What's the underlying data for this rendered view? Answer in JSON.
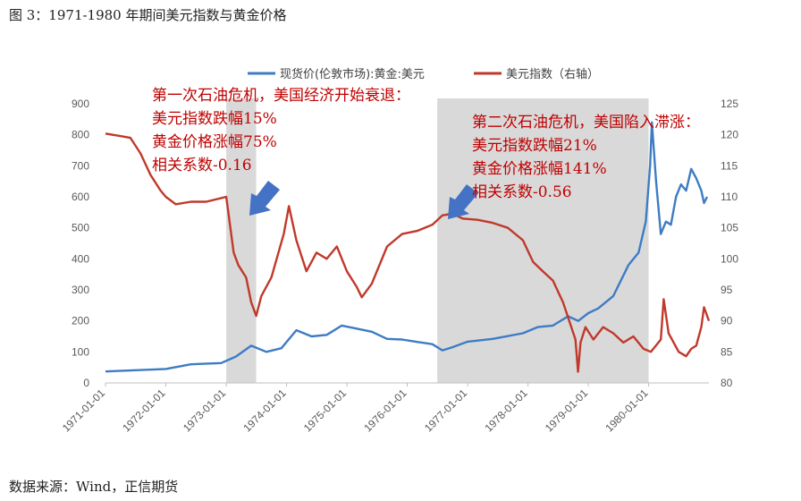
{
  "figure_title": "图 3：1971-1980 年期间美元指数与黄金价格",
  "source": "数据来源：Wind，正信期货",
  "colors": {
    "gold": "#3d7cc4",
    "usd": "#c0392b",
    "shade": "#d9d9d9",
    "annotation": "#c00000",
    "arrow": "#4472c4"
  },
  "legend": [
    {
      "label": "现货价(伦敦市场):黄金:美元",
      "color": "#3d7cc4"
    },
    {
      "label": "美元指数（右轴）",
      "color": "#c0392b"
    }
  ],
  "annotations": [
    {
      "lines": [
        "第一次石油危机，美国经济开始衰退：",
        "美元指数跌幅15%",
        "黄金价格涨幅75%",
        "相关系数-0.16"
      ]
    },
    {
      "lines": [
        "第二次石油危机，美国陷入滞涨：",
        "美元指数跌幅21%",
        "黄金价格涨幅141%",
        "相关系数-0.56"
      ]
    }
  ],
  "chart_data": {
    "type": "line",
    "x_tick_labels": [
      "1971-01-01",
      "1972-01-01",
      "1973-01-01",
      "1974-01-01",
      "1975-01-01",
      "1976-01-01",
      "1977-01-01",
      "1978-01-01",
      "1979-01-01",
      "1980-01-01"
    ],
    "xlim": [
      "1971-01-01",
      "1980-12-31"
    ],
    "y_left_lim": [
      0,
      900
    ],
    "y_left_ticks": [
      "0",
      "100",
      "200",
      "300",
      "400",
      "500",
      "600",
      "700",
      "800",
      "900"
    ],
    "y_right_lim": [
      80,
      125
    ],
    "y_right_ticks": [
      "80",
      "85",
      "90",
      "95",
      "100",
      "105",
      "110",
      "115",
      "120",
      "125"
    ],
    "shaded_periods": [
      {
        "start": "1973-01-01",
        "end": "1973-07-01"
      },
      {
        "start": "1976-07-01",
        "end": "1980-01-01"
      }
    ],
    "series": [
      {
        "name": "现货价(伦敦市场):黄金:美元",
        "axis": "left",
        "points": [
          [
            "1971-01-01",
            37
          ],
          [
            "1971-06-01",
            40
          ],
          [
            "1972-01-01",
            45
          ],
          [
            "1972-06-01",
            60
          ],
          [
            "1972-12-01",
            64
          ],
          [
            "1973-03-01",
            85
          ],
          [
            "1973-06-01",
            120
          ],
          [
            "1973-09-01",
            100
          ],
          [
            "1973-12-01",
            112
          ],
          [
            "1974-03-01",
            170
          ],
          [
            "1974-06-01",
            150
          ],
          [
            "1974-09-01",
            155
          ],
          [
            "1974-12-01",
            185
          ],
          [
            "1975-03-01",
            175
          ],
          [
            "1975-06-01",
            165
          ],
          [
            "1975-09-01",
            142
          ],
          [
            "1975-12-01",
            140
          ],
          [
            "1976-03-01",
            132
          ],
          [
            "1976-06-01",
            125
          ],
          [
            "1976-08-01",
            105
          ],
          [
            "1976-10-01",
            115
          ],
          [
            "1977-01-01",
            133
          ],
          [
            "1977-06-01",
            142
          ],
          [
            "1977-12-01",
            160
          ],
          [
            "1978-03-01",
            180
          ],
          [
            "1978-06-01",
            185
          ],
          [
            "1978-09-01",
            215
          ],
          [
            "1978-11-01",
            200
          ],
          [
            "1979-01-01",
            225
          ],
          [
            "1979-03-01",
            240
          ],
          [
            "1979-06-01",
            280
          ],
          [
            "1979-09-01",
            380
          ],
          [
            "1979-11-01",
            420
          ],
          [
            "1979-12-15",
            520
          ],
          [
            "1980-01-10",
            700
          ],
          [
            "1980-01-21",
            840
          ],
          [
            "1980-02-15",
            650
          ],
          [
            "1980-03-15",
            480
          ],
          [
            "1980-04-15",
            520
          ],
          [
            "1980-05-15",
            510
          ],
          [
            "1980-06-15",
            600
          ],
          [
            "1980-07-15",
            640
          ],
          [
            "1980-08-15",
            620
          ],
          [
            "1980-09-15",
            690
          ],
          [
            "1980-10-15",
            660
          ],
          [
            "1980-11-15",
            620
          ],
          [
            "1980-12-01",
            580
          ],
          [
            "1980-12-20",
            600
          ]
        ]
      },
      {
        "name": "美元指数（右轴）",
        "axis": "right",
        "points": [
          [
            "1971-01-01",
            120.2
          ],
          [
            "1971-04-01",
            119.8
          ],
          [
            "1971-06-01",
            119.5
          ],
          [
            "1971-08-01",
            117
          ],
          [
            "1971-10-01",
            113.5
          ],
          [
            "1971-12-01",
            111
          ],
          [
            "1972-01-01",
            110
          ],
          [
            "1972-03-01",
            108.8
          ],
          [
            "1972-06-01",
            109.2
          ],
          [
            "1972-09-01",
            109.2
          ],
          [
            "1972-12-01",
            109.8
          ],
          [
            "1973-01-01",
            110
          ],
          [
            "1973-02-15",
            101
          ],
          [
            "1973-03-15",
            99
          ],
          [
            "1973-05-01",
            97
          ],
          [
            "1973-06-01",
            93
          ],
          [
            "1973-07-01",
            90.8
          ],
          [
            "1973-08-01",
            94
          ],
          [
            "1973-10-01",
            97
          ],
          [
            "1973-12-15",
            104
          ],
          [
            "1974-01-15",
            108.5
          ],
          [
            "1974-03-01",
            103
          ],
          [
            "1974-05-01",
            98
          ],
          [
            "1974-07-01",
            101
          ],
          [
            "1974-09-01",
            100
          ],
          [
            "1974-11-01",
            102
          ],
          [
            "1975-01-01",
            98
          ],
          [
            "1975-03-01",
            95.5
          ],
          [
            "1975-04-01",
            93.8
          ],
          [
            "1975-06-01",
            96
          ],
          [
            "1975-09-01",
            102
          ],
          [
            "1975-12-01",
            104
          ],
          [
            "1976-03-01",
            104.5
          ],
          [
            "1976-06-01",
            105.5
          ],
          [
            "1976-08-01",
            107
          ],
          [
            "1976-10-01",
            107.3
          ],
          [
            "1976-12-01",
            106.5
          ],
          [
            "1977-03-01",
            106.3
          ],
          [
            "1977-06-01",
            105.8
          ],
          [
            "1977-09-01",
            105
          ],
          [
            "1977-12-01",
            103
          ],
          [
            "1978-02-01",
            99.5
          ],
          [
            "1978-04-01",
            98
          ],
          [
            "1978-06-01",
            96.5
          ],
          [
            "1978-08-01",
            93
          ],
          [
            "1978-10-15",
            87
          ],
          [
            "1978-10-31",
            81.8
          ],
          [
            "1978-11-15",
            86.5
          ],
          [
            "1978-12-15",
            89
          ],
          [
            "1979-02-01",
            87
          ],
          [
            "1979-04-01",
            89
          ],
          [
            "1979-06-01",
            88
          ],
          [
            "1979-08-01",
            86.5
          ],
          [
            "1979-10-01",
            87.5
          ],
          [
            "1979-12-01",
            85.5
          ],
          [
            "1980-01-15",
            85
          ],
          [
            "1980-03-15",
            87
          ],
          [
            "1980-04-01",
            93.5
          ],
          [
            "1980-05-01",
            88
          ],
          [
            "1980-07-01",
            85
          ],
          [
            "1980-08-15",
            84.3
          ],
          [
            "1980-09-15",
            85.5
          ],
          [
            "1980-10-15",
            86
          ],
          [
            "1980-11-15",
            89
          ],
          [
            "1980-12-01",
            92.2
          ],
          [
            "1980-12-31",
            90
          ]
        ]
      }
    ]
  }
}
